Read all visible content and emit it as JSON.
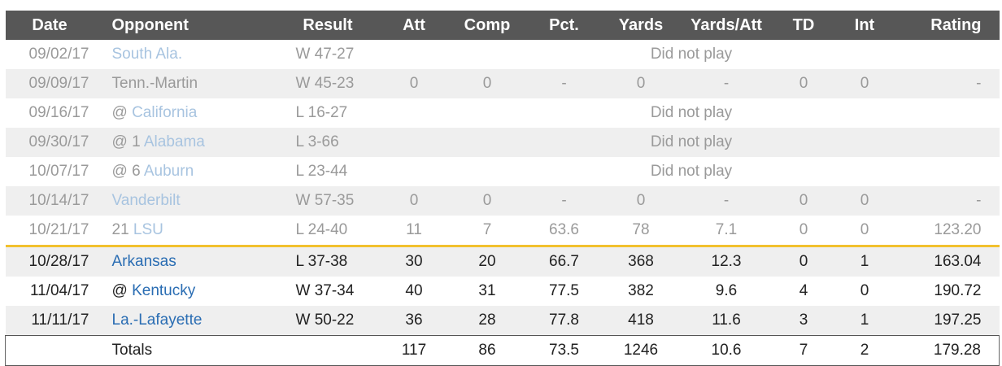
{
  "columns": [
    "Date",
    "Opponent",
    "Result",
    "Att",
    "Comp",
    "Pct.",
    "Yards",
    "Yards/Att",
    "TD",
    "Int",
    "Rating"
  ],
  "rows": [
    {
      "date": "09/02/17",
      "prefix": "",
      "team": "South Ala.",
      "result": "W 47-27",
      "dnp": "Did not play"
    },
    {
      "date": "09/09/17",
      "prefix": "",
      "team_plain": "Tenn.-Martin",
      "result": "W 45-23",
      "att": "0",
      "comp": "0",
      "pct": "-",
      "yards": "0",
      "ypa": "-",
      "td": "0",
      "int": "0",
      "rating": "-"
    },
    {
      "date": "09/16/17",
      "prefix": "@",
      "team": "California",
      "result": "L 16-27",
      "dnp": "Did not play"
    },
    {
      "date": "09/30/17",
      "prefix": "@ 1",
      "team": "Alabama",
      "result": "L 3-66",
      "dnp": "Did not play"
    },
    {
      "date": "10/07/17",
      "prefix": "@ 6",
      "team": "Auburn",
      "result": "L 23-44",
      "dnp": "Did not play"
    },
    {
      "date": "10/14/17",
      "prefix": "",
      "team": "Vanderbilt",
      "result": "W 57-35",
      "att": "0",
      "comp": "0",
      "pct": "-",
      "yards": "0",
      "ypa": "-",
      "td": "0",
      "int": "0",
      "rating": "-"
    },
    {
      "date": "10/21/17",
      "prefix": "21",
      "team": "LSU",
      "result": "L 24-40",
      "att": "11",
      "comp": "7",
      "pct": "63.6",
      "yards": "78",
      "ypa": "7.1",
      "td": "0",
      "int": "0",
      "rating": "123.20"
    },
    {
      "date": "10/28/17",
      "prefix": "",
      "team": "Arkansas",
      "result": "L 37-38",
      "att": "30",
      "comp": "20",
      "pct": "66.7",
      "yards": "368",
      "ypa": "12.3",
      "td": "0",
      "int": "1",
      "rating": "163.04"
    },
    {
      "date": "11/04/17",
      "prefix": "@",
      "team": "Kentucky",
      "result": "W 37-34",
      "att": "40",
      "comp": "31",
      "pct": "77.5",
      "yards": "382",
      "ypa": "9.6",
      "td": "4",
      "int": "0",
      "rating": "190.72"
    },
    {
      "date": "11/11/17",
      "prefix": "",
      "team": "La.-Lafayette",
      "result": "W 50-22",
      "att": "36",
      "comp": "28",
      "pct": "77.8",
      "yards": "418",
      "ypa": "11.6",
      "td": "3",
      "int": "1",
      "rating": "197.25"
    }
  ],
  "totals": {
    "label": "Totals",
    "att": "117",
    "comp": "86",
    "pct": "73.5",
    "yards": "1246",
    "ypa": "10.6",
    "td": "7",
    "int": "2",
    "rating": "179.28"
  },
  "colors": {
    "header_bg": "#575757",
    "past_text": "#9a9a9a",
    "link": "#2a6db3",
    "separator": "#f2c12e"
  }
}
